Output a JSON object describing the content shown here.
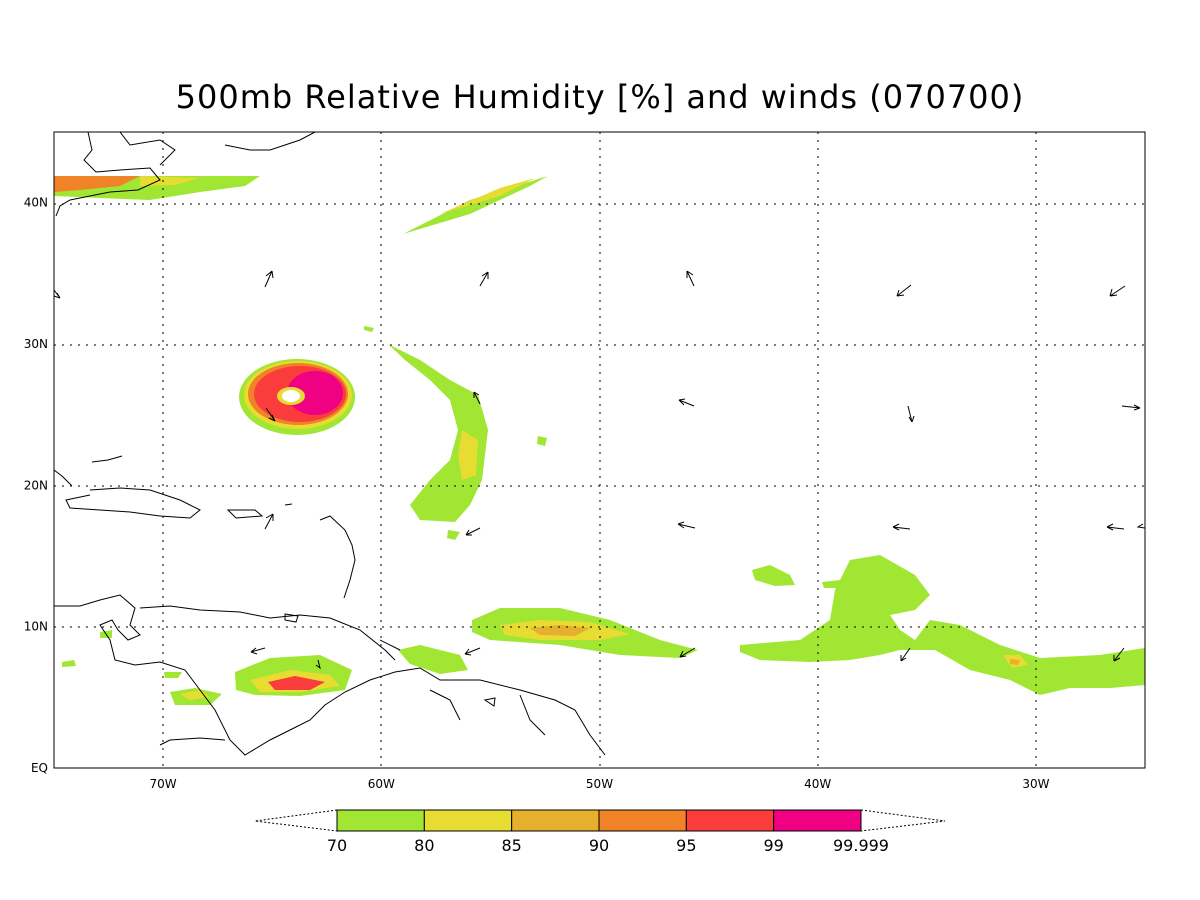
{
  "title": "500mb Relative Humidity [%] and winds (070700)",
  "map": {
    "lon_range": [
      -75,
      -25
    ],
    "lat_range": [
      0,
      45
    ],
    "lon_ticks": [
      {
        "value": -70,
        "label": "70W"
      },
      {
        "value": -60,
        "label": "60W"
      },
      {
        "value": -50,
        "label": "50W"
      },
      {
        "value": -40,
        "label": "40W"
      },
      {
        "value": -30,
        "label": "30W"
      }
    ],
    "lat_ticks": [
      {
        "value": 0,
        "label": "EQ"
      },
      {
        "value": 10,
        "label": "10N"
      },
      {
        "value": 20,
        "label": "20N"
      },
      {
        "value": 30,
        "label": "30N"
      },
      {
        "value": 40,
        "label": "40N"
      }
    ],
    "grid": "dotted"
  },
  "colorbar": {
    "labels": [
      "70",
      "80",
      "85",
      "90",
      "95",
      "99",
      "99.999"
    ],
    "colors": [
      "#a0e632",
      "#e6dc32",
      "#e6af2d",
      "#f08228",
      "#fa3c3c",
      "#f00082"
    ]
  },
  "chart_data": {
    "type": "heatmap",
    "variable": "500mb relative humidity (%) with wind vectors",
    "levels": [
      70,
      80,
      85,
      90,
      95,
      99,
      99.999
    ]
  }
}
